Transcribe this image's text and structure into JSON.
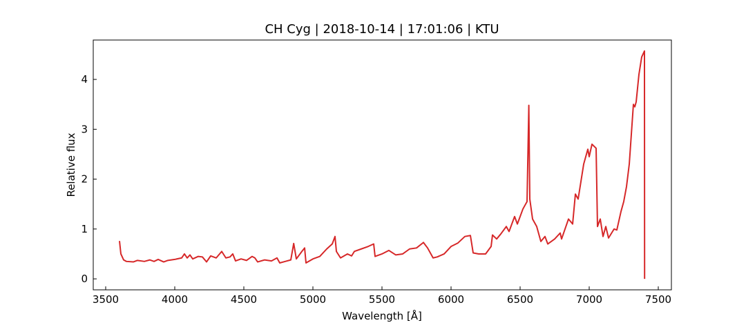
{
  "chart_data": {
    "type": "line",
    "title": "CH Cyg | 2018-10-14 | 17:01:06 | KTU",
    "x_label": "Wavelength [Å]",
    "y_label": "Relative flux",
    "xlim": [
      3410,
      7595
    ],
    "ylim": [
      -0.22,
      4.79
    ],
    "xticks": [
      3500,
      4000,
      4500,
      5000,
      5500,
      6000,
      6500,
      7000,
      7500
    ],
    "yticks": [
      0,
      1,
      2,
      3,
      4
    ],
    "series": [
      {
        "name": "CH Cyg",
        "color": "#d62728",
        "x": [
          3600,
          3610,
          3630,
          3650,
          3700,
          3730,
          3780,
          3820,
          3850,
          3880,
          3920,
          3950,
          4000,
          4050,
          4070,
          4090,
          4110,
          4130,
          4170,
          4200,
          4230,
          4260,
          4300,
          4340,
          4370,
          4400,
          4420,
          4440,
          4480,
          4520,
          4560,
          4580,
          4600,
          4650,
          4700,
          4740,
          4760,
          4800,
          4840,
          4861,
          4880,
          4920,
          4940,
          4950,
          5000,
          5050,
          5100,
          5140,
          5160,
          5170,
          5200,
          5250,
          5280,
          5300,
          5350,
          5400,
          5440,
          5450,
          5500,
          5550,
          5600,
          5650,
          5700,
          5750,
          5800,
          5830,
          5870,
          5900,
          5950,
          6000,
          6050,
          6100,
          6140,
          6160,
          6200,
          6250,
          6290,
          6300,
          6330,
          6360,
          6400,
          6420,
          6460,
          6480,
          6520,
          6550,
          6563,
          6570,
          6590,
          6620,
          6650,
          6680,
          6700,
          6750,
          6790,
          6800,
          6850,
          6880,
          6900,
          6920,
          6960,
          6990,
          7000,
          7020,
          7050,
          7060,
          7080,
          7100,
          7120,
          7140,
          7180,
          7200,
          7230,
          7250,
          7270,
          7290,
          7320,
          7330,
          7340,
          7360,
          7380,
          7400,
          7401
        ],
        "values": [
          0.76,
          0.5,
          0.38,
          0.35,
          0.34,
          0.37,
          0.35,
          0.38,
          0.35,
          0.39,
          0.34,
          0.37,
          0.39,
          0.42,
          0.5,
          0.42,
          0.48,
          0.4,
          0.45,
          0.44,
          0.34,
          0.46,
          0.42,
          0.55,
          0.42,
          0.44,
          0.5,
          0.36,
          0.4,
          0.37,
          0.45,
          0.42,
          0.34,
          0.38,
          0.36,
          0.42,
          0.32,
          0.35,
          0.38,
          0.71,
          0.4,
          0.55,
          0.62,
          0.32,
          0.4,
          0.45,
          0.6,
          0.7,
          0.85,
          0.55,
          0.42,
          0.5,
          0.46,
          0.55,
          0.6,
          0.65,
          0.7,
          0.45,
          0.5,
          0.57,
          0.48,
          0.5,
          0.6,
          0.62,
          0.73,
          0.62,
          0.42,
          0.44,
          0.5,
          0.65,
          0.72,
          0.85,
          0.87,
          0.52,
          0.5,
          0.5,
          0.65,
          0.88,
          0.8,
          0.9,
          1.05,
          0.95,
          1.25,
          1.1,
          1.4,
          1.55,
          3.48,
          1.6,
          1.2,
          1.05,
          0.75,
          0.85,
          0.7,
          0.8,
          0.92,
          0.8,
          1.2,
          1.1,
          1.7,
          1.6,
          2.3,
          2.6,
          2.45,
          2.7,
          2.62,
          1.05,
          1.2,
          0.85,
          1.05,
          0.82,
          1.0,
          0.98,
          1.35,
          1.55,
          1.85,
          2.3,
          3.5,
          3.45,
          3.55,
          4.1,
          4.45,
          4.57,
          0.0
        ]
      }
    ]
  }
}
